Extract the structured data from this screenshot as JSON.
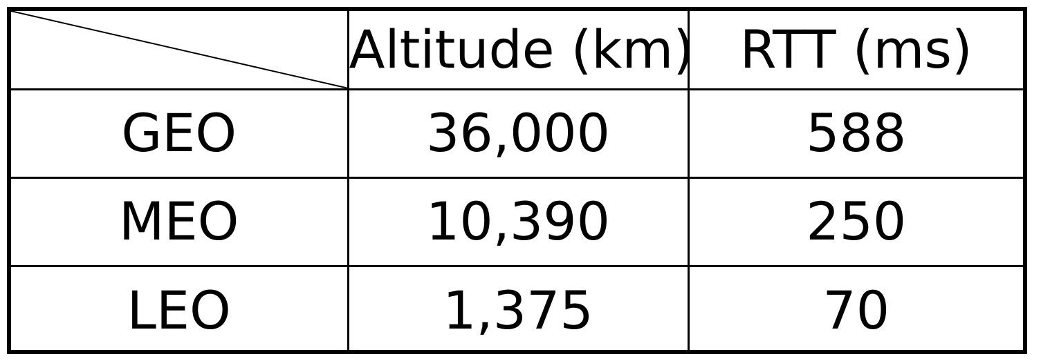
{
  "table": {
    "headers": [
      "Altitude (km)",
      "RTT (ms)"
    ],
    "rows": [
      {
        "label": "GEO",
        "altitude": "36,000",
        "rtt": "588"
      },
      {
        "label": "MEO",
        "altitude": "10,390",
        "rtt": "250"
      },
      {
        "label": "LEO",
        "altitude": "1,375",
        "rtt": "70"
      }
    ]
  }
}
